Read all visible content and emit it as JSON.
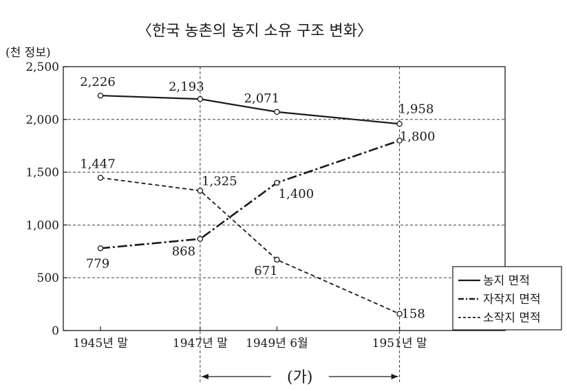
{
  "chart_data": {
    "type": "line",
    "title": "〈한국 농촌의 농지 소유 구조 변화〉",
    "y_unit": "(천 정보)",
    "categories": [
      "1945년 말",
      "1947년 말",
      "1949년 6월",
      "1951년 말"
    ],
    "x_positions": [
      1945.92,
      1947.92,
      1949.46,
      1951.92
    ],
    "ylim": [
      0,
      2500
    ],
    "yticks": [
      0,
      500,
      1000,
      1500,
      2000,
      2500
    ],
    "ytick_labels": [
      "0",
      "500",
      "1,000",
      "1,500",
      "2,000",
      "2,500"
    ],
    "grid": "horizontal-dashed",
    "legend_position": "right",
    "series": [
      {
        "name": "농지 면적",
        "style": "solid",
        "values": [
          2226,
          2193,
          2071,
          1958
        ],
        "labels": [
          "2,226",
          "2,193",
          "2,071",
          "1,958"
        ]
      },
      {
        "name": "자작지 면적",
        "style": "dash-dot",
        "values": [
          779,
          868,
          1400,
          1800
        ],
        "labels": [
          "779",
          "868",
          "1,400",
          "1,800"
        ]
      },
      {
        "name": "소작지 면적",
        "style": "dashed",
        "values": [
          1447,
          1325,
          671,
          158
        ],
        "labels": [
          "1,447",
          "1,325",
          "671",
          "158"
        ]
      }
    ],
    "annotation": {
      "text": "(가)",
      "from_category": "1947년 말",
      "to_category": "1951년 말"
    }
  }
}
